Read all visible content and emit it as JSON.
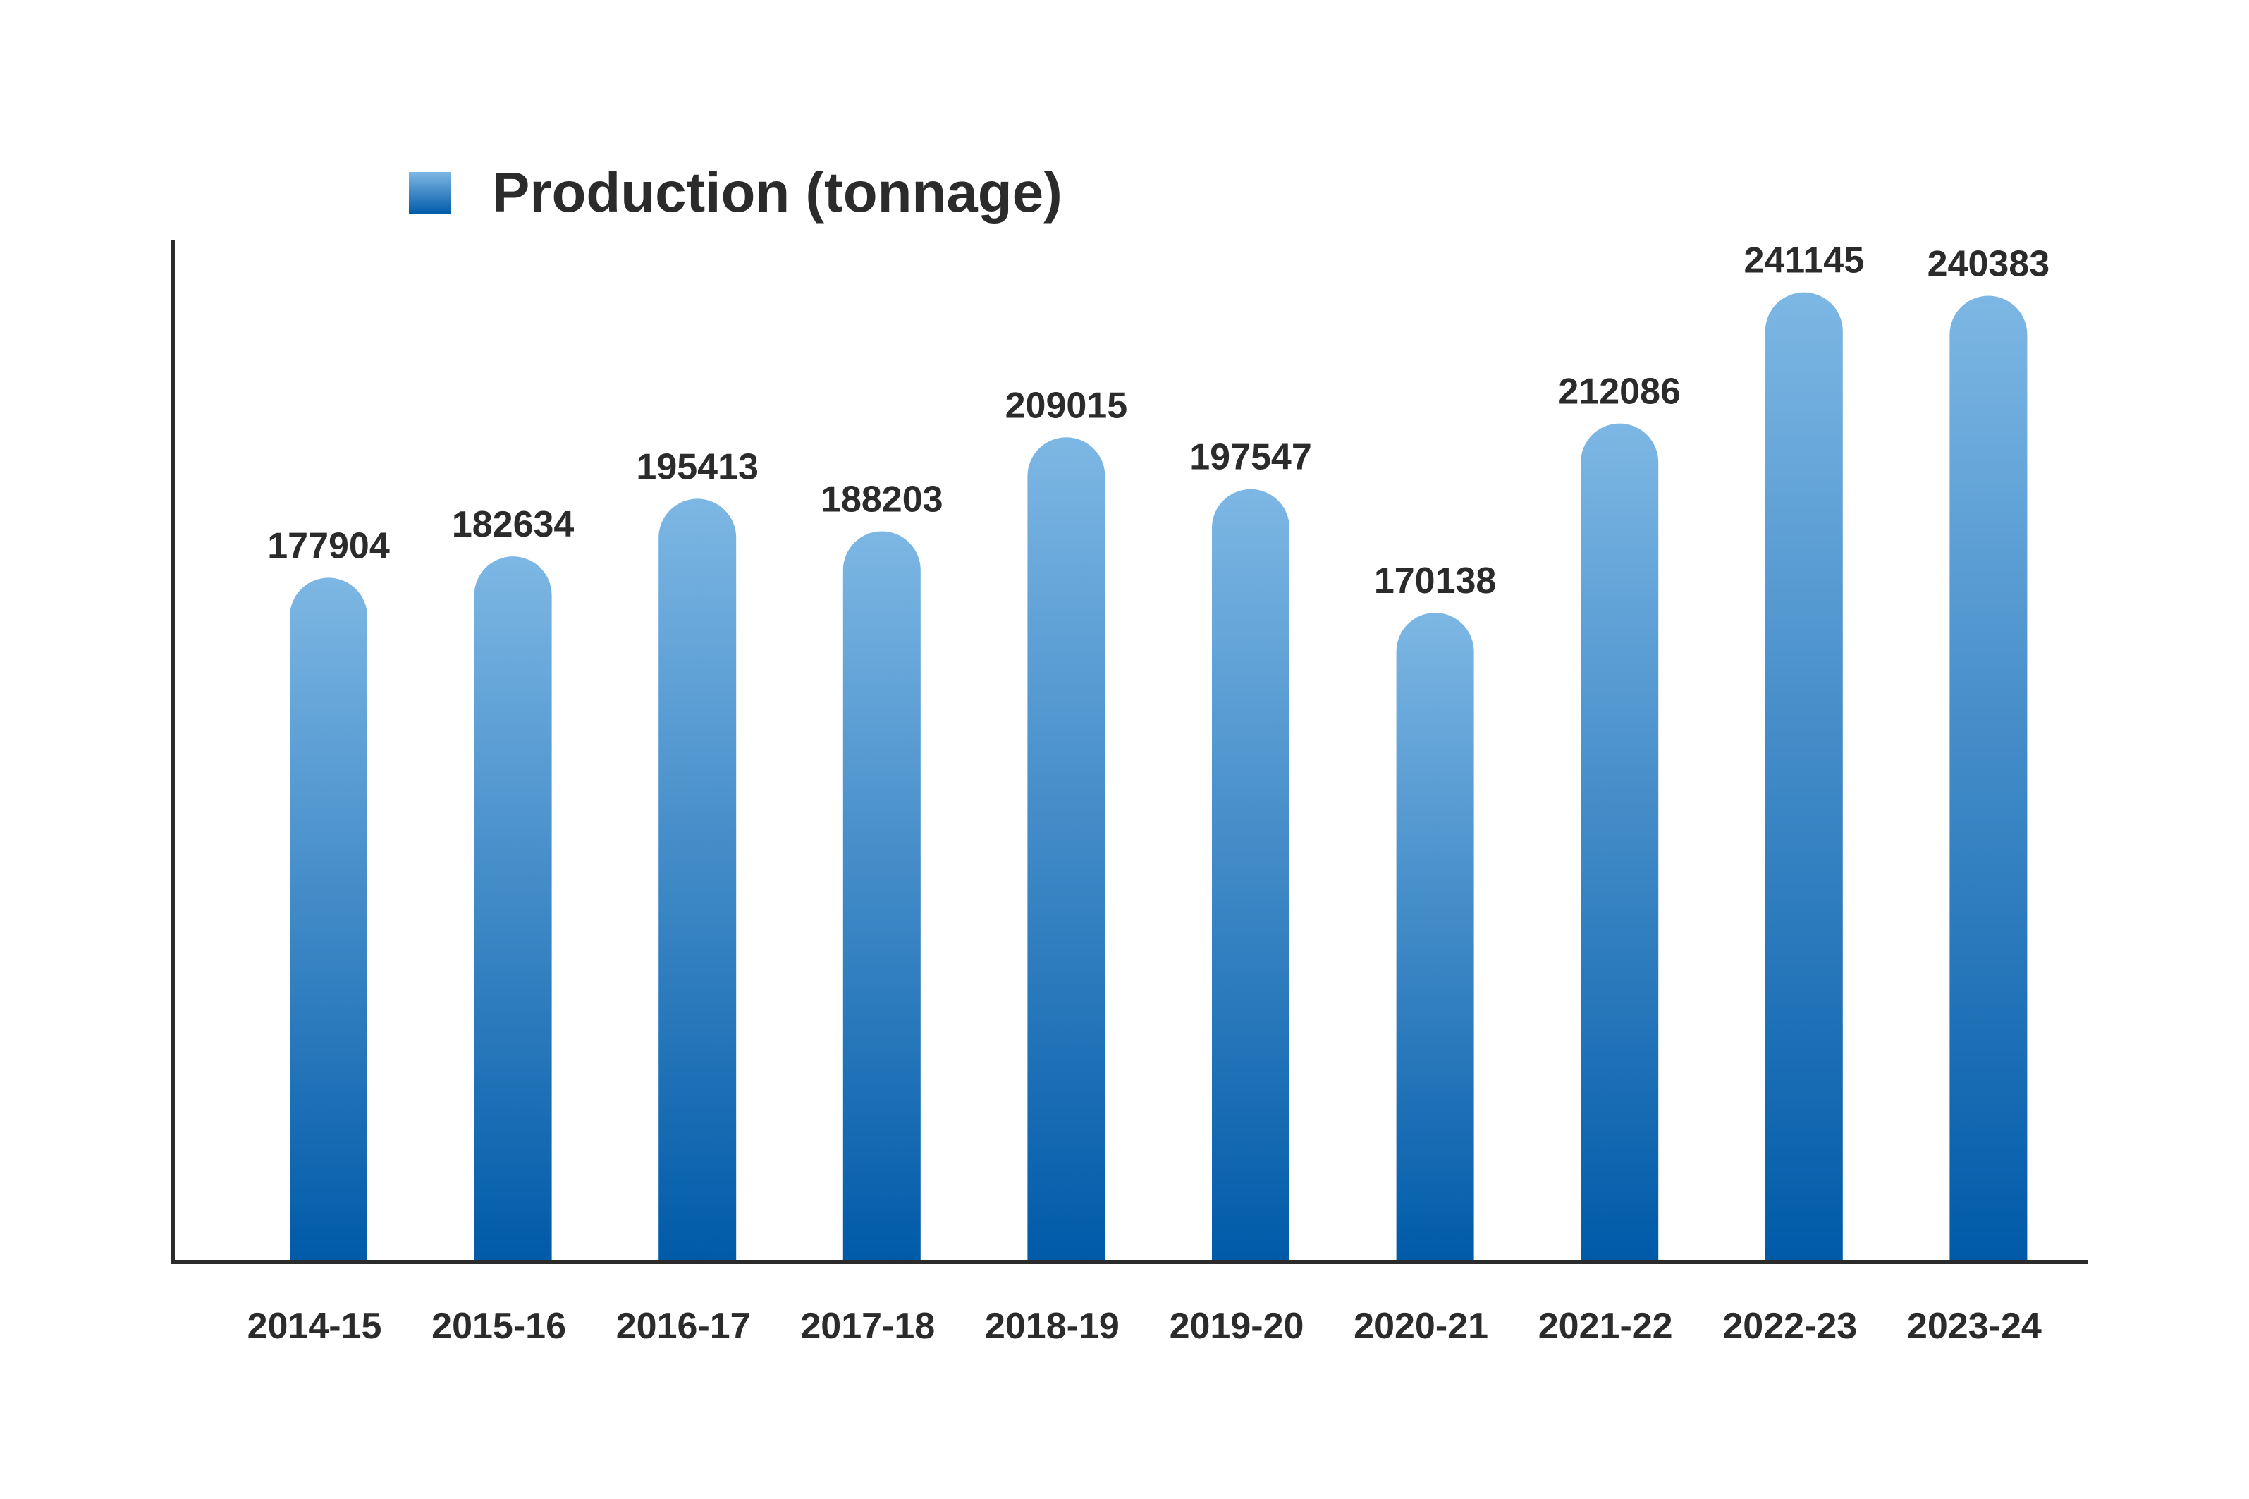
{
  "chart_data": {
    "type": "bar",
    "categories": [
      "2014-15",
      "2015-16",
      "2016-17",
      "2017-18",
      "2018-19",
      "2019-20",
      "2020-21",
      "2021-22",
      "2022-23",
      "2023-24"
    ],
    "series": [
      {
        "name": "Production (tonnage)",
        "values": [
          177904,
          182634,
          195413,
          188203,
          209015,
          197547,
          170138,
          212086,
          241145,
          240383
        ]
      }
    ],
    "value_labels": [
      "177904",
      "182634",
      "195413",
      "188203",
      "209015",
      "197547",
      "170138",
      "212086",
      "241145",
      "240383"
    ],
    "title": "",
    "xlabel": "",
    "ylabel": "",
    "legend_placement": "top-left",
    "grid": false,
    "bar_style": "rounded-top",
    "colors": {
      "bar_top": "#7db7e4",
      "bar_bottom": "#005aa8",
      "axis": "#2b2b2b",
      "text": "#2b2b2b"
    }
  }
}
